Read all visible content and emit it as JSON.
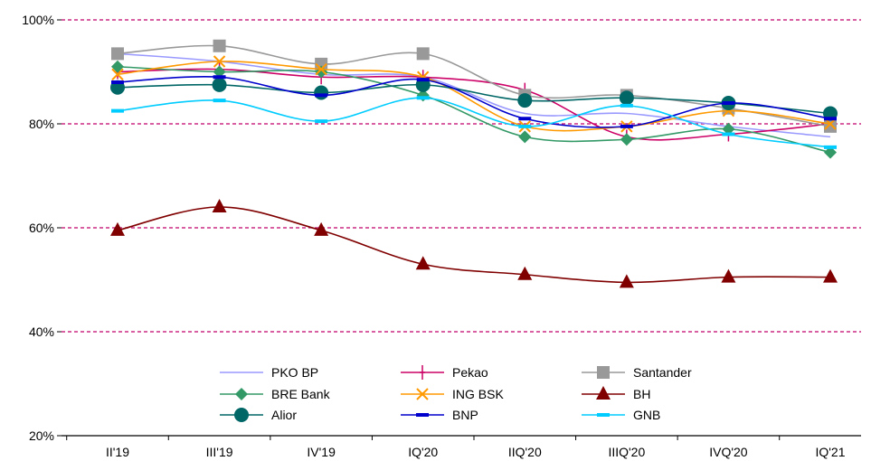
{
  "chart_data": {
    "type": "line",
    "categories": [
      "II'19",
      "III'19",
      "IV'19",
      "IQ'20",
      "IIQ'20",
      "IIIQ'20",
      "IVQ'20",
      "IQ'21"
    ],
    "ylim": [
      20,
      100
    ],
    "yticks": [
      20,
      40,
      60,
      80,
      100
    ],
    "ytick_labels": [
      "20%",
      "40%",
      "60%",
      "80%",
      "100%"
    ],
    "grid": "horizontal dashed",
    "grid_color": "#c0006a",
    "legend": "bottom-center",
    "series": [
      {
        "name": "PKO BP",
        "color": "#9999ff",
        "marker": "none",
        "values": [
          93.5,
          92.0,
          89.5,
          89.0,
          82.0,
          82.0,
          79.5,
          77.5
        ]
      },
      {
        "name": "Pekao",
        "color": "#cc0066",
        "marker": "plus",
        "values": [
          90.0,
          90.5,
          89.0,
          89.0,
          86.5,
          77.5,
          78.0,
          80.0
        ]
      },
      {
        "name": "Santander",
        "color": "#999999",
        "marker": "square",
        "values": [
          93.5,
          95.0,
          91.5,
          93.5,
          85.5,
          85.5,
          83.0,
          79.5
        ]
      },
      {
        "name": "BRE Bank",
        "color": "#339966",
        "marker": "diamond",
        "values": [
          91.0,
          90.0,
          90.0,
          85.5,
          77.5,
          77.0,
          79.0,
          74.5
        ]
      },
      {
        "name": "ING BSK",
        "color": "#ff9900",
        "marker": "x",
        "values": [
          89.5,
          92.0,
          90.5,
          89.0,
          79.5,
          79.5,
          82.5,
          80.0
        ]
      },
      {
        "name": "BH",
        "color": "#800000",
        "marker": "triangle",
        "values": [
          59.5,
          64.0,
          59.5,
          53.0,
          51.0,
          49.5,
          50.5,
          50.5
        ]
      },
      {
        "name": "Alior",
        "color": "#006666",
        "marker": "circle",
        "values": [
          87.0,
          87.5,
          86.0,
          87.5,
          84.5,
          85.0,
          84.0,
          82.0
        ]
      },
      {
        "name": "BNP",
        "color": "#0000cc",
        "marker": "dash",
        "values": [
          88.0,
          89.0,
          85.5,
          88.5,
          81.0,
          79.5,
          84.0,
          81.0
        ]
      },
      {
        "name": "GNB",
        "color": "#00ccff",
        "marker": "dash",
        "values": [
          82.5,
          84.5,
          80.5,
          85.0,
          79.5,
          83.5,
          78.0,
          75.5
        ]
      }
    ]
  }
}
